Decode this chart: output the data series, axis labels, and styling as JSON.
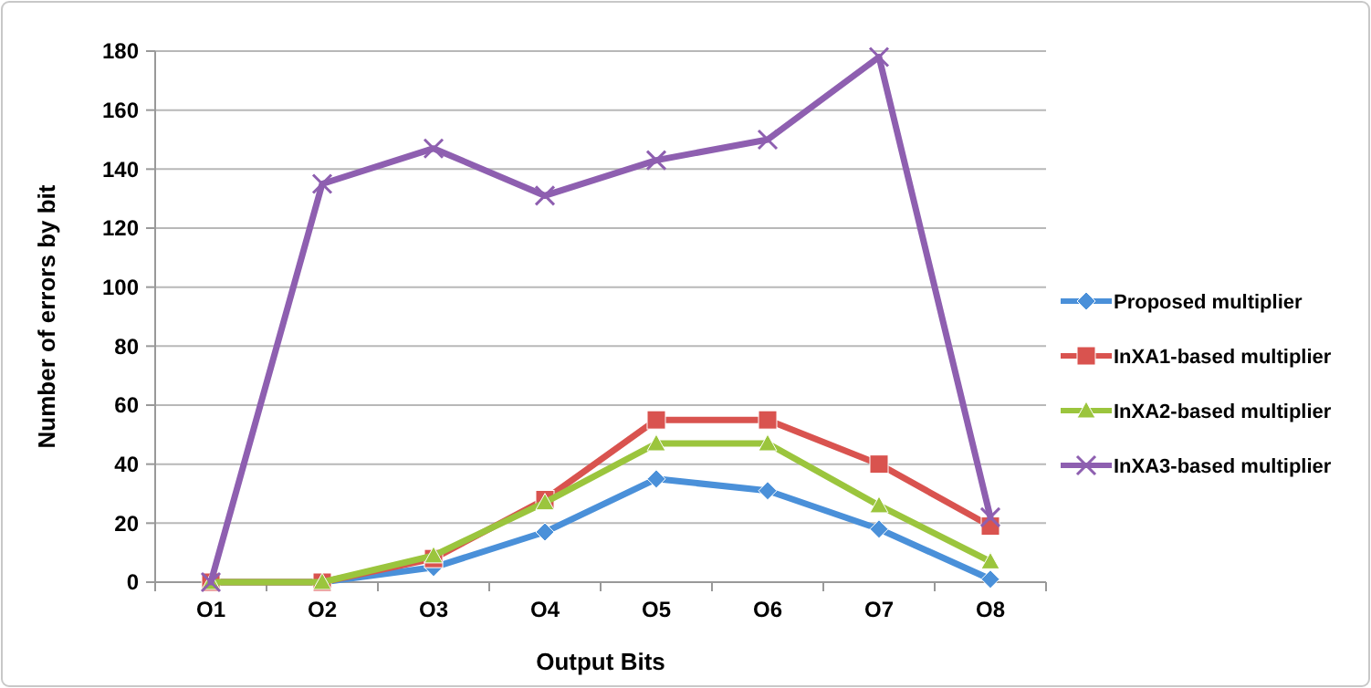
{
  "chart_data": {
    "type": "line",
    "xlabel": "Output Bits",
    "ylabel": "Number of errors by bit",
    "categories": [
      "O1",
      "O2",
      "O3",
      "O4",
      "O5",
      "O6",
      "O7",
      "O8"
    ],
    "series": [
      {
        "name": "Proposed multiplier",
        "color": "#4a90d9",
        "marker": "diamond",
        "values": [
          0,
          0,
          5,
          17,
          35,
          31,
          18,
          1
        ]
      },
      {
        "name": "InXA1-based multiplier",
        "color": "#d9534f",
        "marker": "square",
        "values": [
          0,
          0,
          8,
          28,
          55,
          55,
          40,
          19
        ]
      },
      {
        "name": "InXA2-based multiplier",
        "color": "#9bc53d",
        "marker": "triangle",
        "values": [
          0,
          0,
          9,
          27,
          47,
          47,
          26,
          7
        ]
      },
      {
        "name": "InXA3-based multiplier",
        "color": "#8e5fb0",
        "marker": "cross",
        "values": [
          0,
          135,
          147,
          131,
          143,
          150,
          178,
          22
        ]
      }
    ],
    "ylim": [
      0,
      180
    ],
    "yticks": [
      0,
      20,
      40,
      60,
      80,
      100,
      120,
      140,
      160,
      180
    ],
    "grid": "y",
    "legend": "right",
    "line_style": "solid"
  }
}
